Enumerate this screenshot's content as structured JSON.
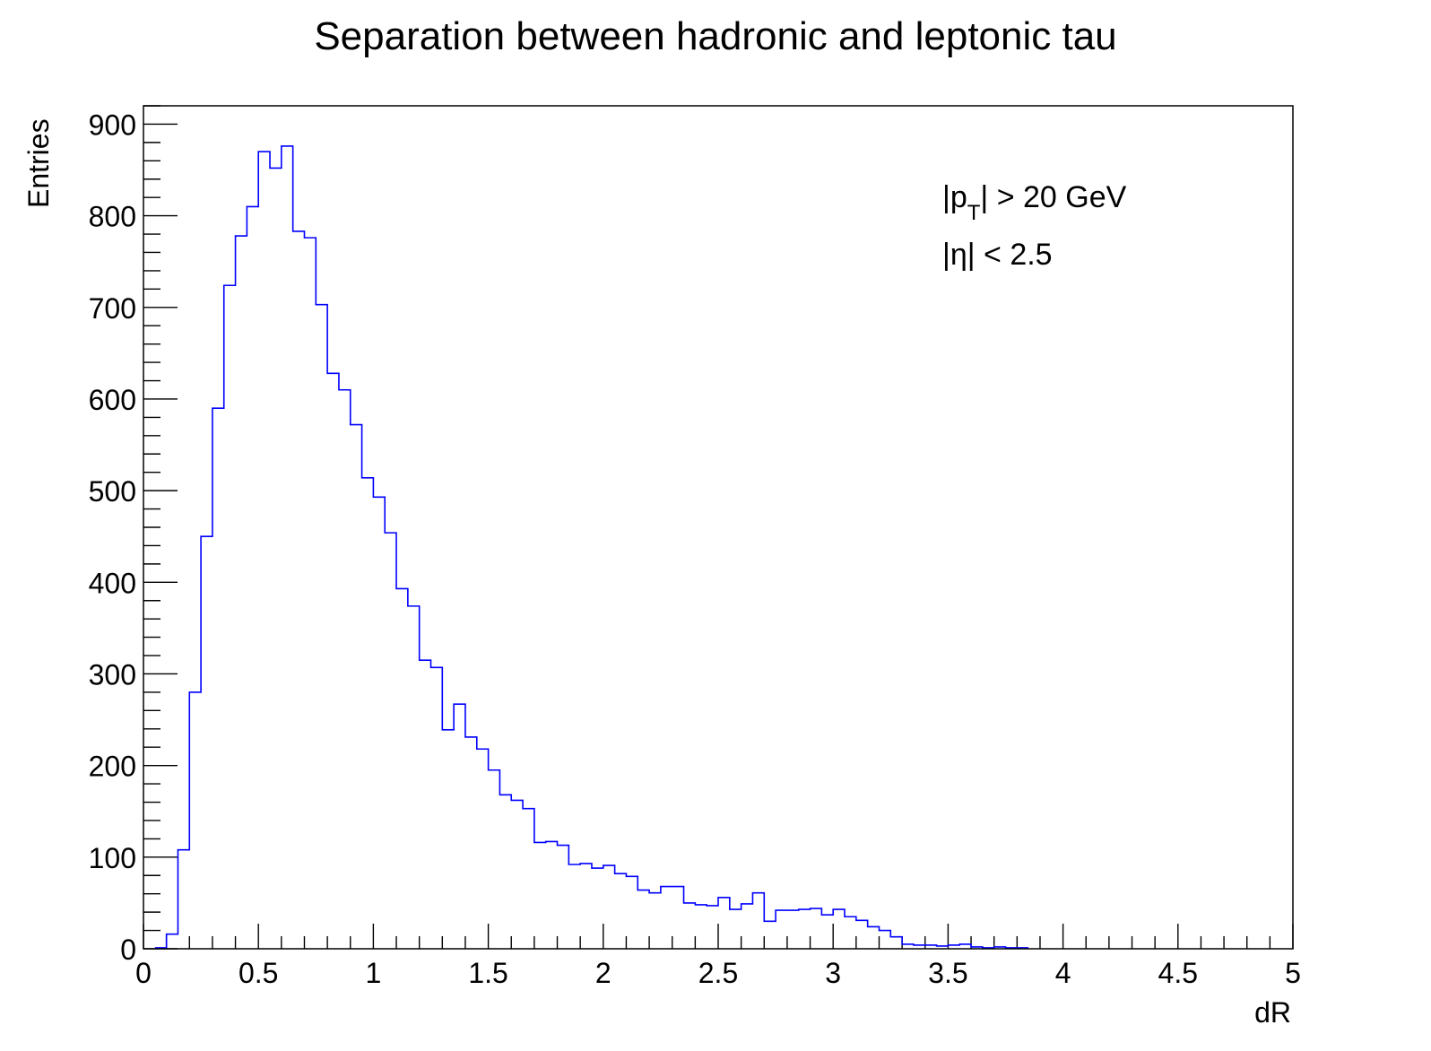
{
  "chart_data": {
    "type": "histogram",
    "title": "Separation between hadronic and leptonic tau",
    "xlabel": "dR",
    "ylabel": "Entries",
    "xlim": [
      0,
      5
    ],
    "ylim": [
      0,
      920
    ],
    "x_ticks": [
      0,
      0.5,
      1,
      1.5,
      2,
      2.5,
      3,
      3.5,
      4,
      4.5,
      5
    ],
    "x_tick_labels": [
      "0",
      "0.5",
      "1",
      "1.5",
      "2",
      "2.5",
      "3",
      "3.5",
      "4",
      "4.5",
      "5"
    ],
    "y_ticks": [
      0,
      100,
      200,
      300,
      400,
      500,
      600,
      700,
      800,
      900
    ],
    "y_tick_labels": [
      "0",
      "100",
      "200",
      "300",
      "400",
      "500",
      "600",
      "700",
      "800",
      "900"
    ],
    "grid": false,
    "line_color": "#0000ff",
    "bin_width": 0.05,
    "bin_low_edges": [
      0.05,
      0.1,
      0.15,
      0.2,
      0.25,
      0.3,
      0.35,
      0.4,
      0.45,
      0.5,
      0.55,
      0.6,
      0.65,
      0.7,
      0.75,
      0.8,
      0.85,
      0.9,
      0.95,
      1.0,
      1.05,
      1.1,
      1.15,
      1.2,
      1.25,
      1.3,
      1.35,
      1.4,
      1.45,
      1.5,
      1.55,
      1.6,
      1.65,
      1.7,
      1.75,
      1.8,
      1.85,
      1.9,
      1.95,
      2.0,
      2.05,
      2.1,
      2.15,
      2.2,
      2.25,
      2.3,
      2.35,
      2.4,
      2.45,
      2.5,
      2.55,
      2.6,
      2.65,
      2.7,
      2.75,
      2.8,
      2.85,
      2.9,
      2.95,
      3.0,
      3.05,
      3.1,
      3.15,
      3.2,
      3.25,
      3.3,
      3.35,
      3.4,
      3.45,
      3.5,
      3.55,
      3.6,
      3.65,
      3.7,
      3.75,
      3.8
    ],
    "values": [
      1,
      16,
      108,
      280,
      450,
      590,
      724,
      778,
      810,
      870,
      852,
      876,
      783,
      776,
      703,
      628,
      610,
      572,
      514,
      493,
      454,
      393,
      374,
      315,
      307,
      239,
      267,
      231,
      218,
      195,
      168,
      162,
      153,
      116,
      117,
      113,
      92,
      93,
      88,
      91,
      82,
      79,
      64,
      61,
      68,
      68,
      50,
      48,
      47,
      56,
      43,
      49,
      61,
      30,
      42,
      42,
      43,
      44,
      37,
      43,
      35,
      31,
      24,
      20,
      13,
      5,
      4,
      4,
      3,
      4,
      5,
      2,
      1,
      2,
      1,
      1
    ],
    "annotations": [
      {
        "text": "|p",
        "sub": "T",
        "suffix": "| > 20 GeV"
      },
      {
        "text": "|η| < 2.5"
      }
    ]
  }
}
